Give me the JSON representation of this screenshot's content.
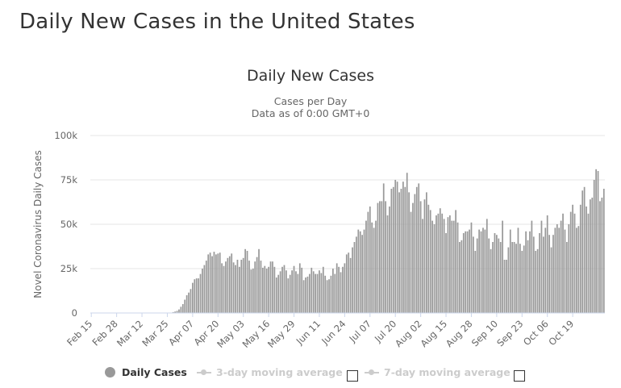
{
  "page": {
    "heading": "Daily New Cases in the United States"
  },
  "chart_data": {
    "type": "bar",
    "title": "Daily New Cases",
    "subtitle_lines": [
      "Cases per Day",
      "Data as of 0:00 GMT+0"
    ],
    "ylabel": "Novel Coronavirus Daily Cases",
    "xlabel": "",
    "ylim": [
      0,
      100000
    ],
    "y_ticks": [
      0,
      25000,
      50000,
      75000,
      100000
    ],
    "y_tick_labels": [
      "0",
      "25k",
      "50k",
      "75k",
      "100k"
    ],
    "x_tick_labels": [
      "Feb 15",
      "Feb 28",
      "Mar 12",
      "Mar 25",
      "Apr 07",
      "Apr 20",
      "May 03",
      "May 16",
      "May 29",
      "Jun 11",
      "Jun 24",
      "Jul 07",
      "Jul 20",
      "Aug 02",
      "Aug 15",
      "Aug 28",
      "Sep 10",
      "Sep 23",
      "Oct 06",
      "Oct 19"
    ],
    "x_tick_every": 13,
    "grid": "horizontal",
    "start_label": "Feb 15",
    "series": [
      {
        "name": "Daily Cases",
        "color": "#999999",
        "values": [
          0,
          0,
          0,
          0,
          0,
          0,
          0,
          0,
          0,
          0,
          0,
          0,
          0,
          0,
          0,
          0,
          0,
          0,
          0,
          0,
          0,
          0,
          0,
          0,
          0,
          0,
          0,
          0,
          0,
          0,
          0,
          0,
          0,
          0,
          0,
          0,
          0,
          0,
          0,
          0,
          0,
          0,
          500,
          800,
          1200,
          2000,
          3500,
          5000,
          7500,
          10000,
          11500,
          13500,
          17000,
          19000,
          19500,
          19500,
          22000,
          25000,
          27000,
          29500,
          33000,
          34000,
          32000,
          34500,
          33000,
          33500,
          34000,
          28000,
          26500,
          29000,
          31000,
          32000,
          33500,
          28500,
          27000,
          30000,
          26000,
          30000,
          31000,
          36000,
          35000,
          29500,
          24500,
          25000,
          29000,
          31500,
          36000,
          29500,
          25500,
          26500,
          25000,
          26000,
          29000,
          29000,
          26000,
          20000,
          21500,
          23500,
          26000,
          27000,
          24000,
          19500,
          21500,
          24000,
          26500,
          23500,
          22000,
          28000,
          25500,
          18500,
          20000,
          20500,
          22000,
          25500,
          23500,
          22000,
          22000,
          24000,
          22500,
          26000,
          21000,
          18500,
          19000,
          21000,
          25000,
          22000,
          28000,
          26000,
          23000,
          26000,
          28000,
          33000,
          34000,
          31000,
          37000,
          40000,
          43000,
          47000,
          46000,
          44000,
          47000,
          52000,
          57000,
          60000,
          51000,
          48000,
          52000,
          62000,
          63000,
          63000,
          73000,
          63000,
          55000,
          60000,
          70000,
          71000,
          75000,
          74000,
          68000,
          70000,
          74000,
          71000,
          79000,
          68000,
          57000,
          62000,
          67000,
          71000,
          73000,
          63000,
          53000,
          64000,
          68000,
          61000,
          58000,
          52000,
          50000,
          55000,
          56000,
          59000,
          56000,
          53000,
          45000,
          54000,
          55000,
          52000,
          52000,
          58000,
          51000,
          40000,
          41000,
          45000,
          46000,
          46000,
          47000,
          51000,
          43000,
          35000,
          42000,
          47000,
          46000,
          48000,
          47000,
          53000,
          42000,
          36000,
          40000,
          45000,
          44000,
          42000,
          40000,
          52000,
          30000,
          30000,
          37000,
          47000,
          40000,
          40000,
          39000,
          48000,
          39000,
          35000,
          38000,
          46000,
          41000,
          46000,
          52000,
          43000,
          35000,
          36000,
          45000,
          52000,
          43000,
          48000,
          55000,
          44000,
          37000,
          44000,
          48000,
          50000,
          48000,
          52000,
          56000,
          47000,
          40000,
          50000,
          57000,
          61000,
          56000,
          48000,
          49000,
          61000,
          69000,
          71000,
          60000,
          56000,
          64000,
          65000,
          75000,
          81000,
          80000,
          63000,
          65000,
          70000
        ]
      }
    ],
    "legend": [
      {
        "name": "Daily Cases",
        "enabled": true
      },
      {
        "name": "3-day moving average",
        "enabled": false
      },
      {
        "name": "7-day moving average",
        "enabled": false
      }
    ]
  }
}
